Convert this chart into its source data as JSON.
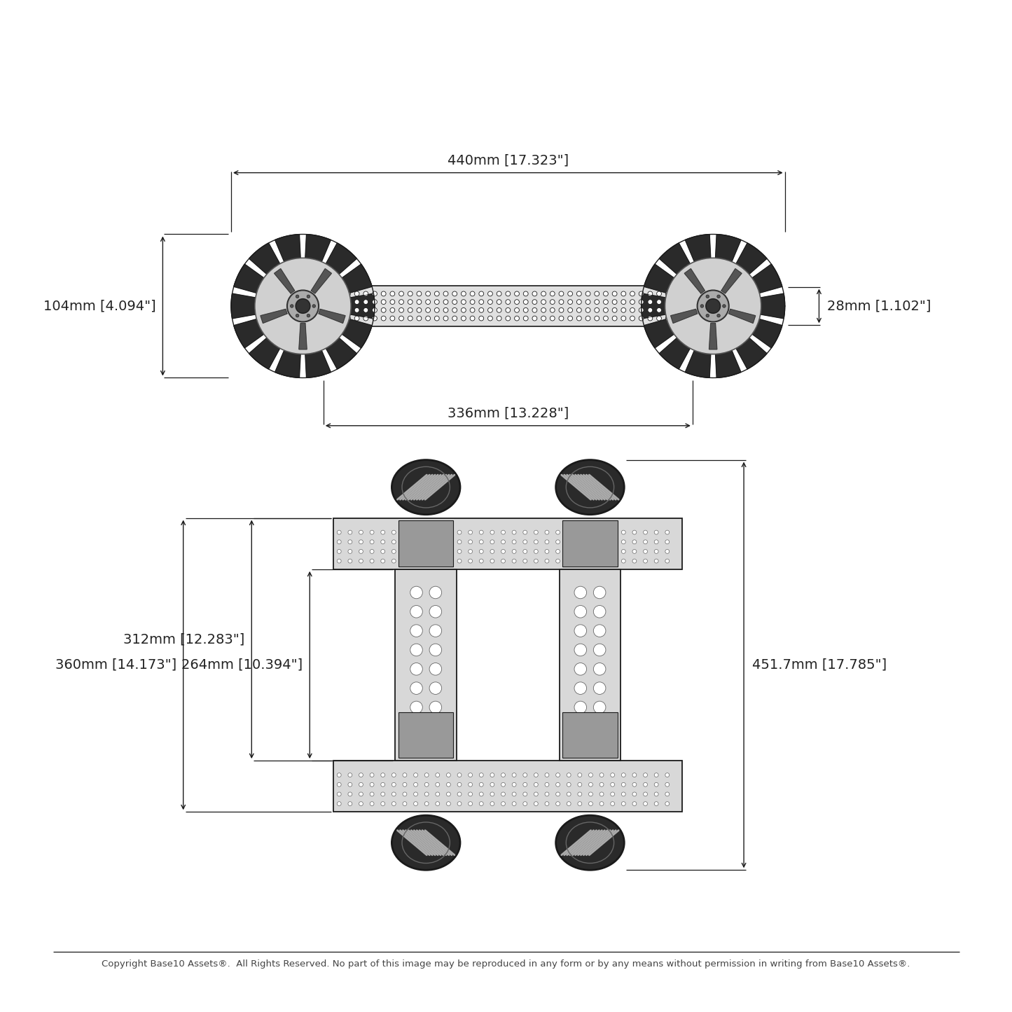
{
  "background_color": "#ffffff",
  "line_color": "#1a1a1a",
  "text_color": "#222222",
  "copyright_text": "Copyright Base10 Assets®.  All Rights Reserved. No part of this image may be reproduced in any form or by any means without permission in writing from Base10 Assets®.",
  "dim_top_width": "440mm [17.323\"]",
  "dim_chassis_width": "336mm [13.228\"]",
  "dim_wheel_diameter": "104mm [4.094\"]",
  "dim_axle_width": "28mm [1.102\"]",
  "dim_312": "312mm [12.283\"]",
  "dim_264": "264mm [10.394\"]",
  "dim_360": "360mm [14.173\"]",
  "dim_451": "451.7mm [17.785\"]",
  "fig_width": 14.45,
  "fig_height": 14.45,
  "dpi": 100
}
